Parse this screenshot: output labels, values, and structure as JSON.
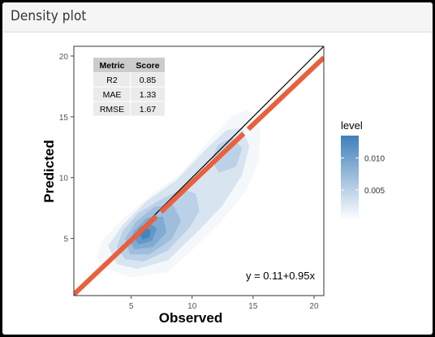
{
  "panel": {
    "title": "Density plot"
  },
  "metrics_table": {
    "headers": [
      "Metric",
      "Score"
    ],
    "rows": [
      [
        "R2",
        "0.85"
      ],
      [
        "MAE",
        "1.33"
      ],
      [
        "RMSE",
        "1.67"
      ]
    ]
  },
  "colors": {
    "background": "#ffffff",
    "identity_line": "#000000",
    "fit_line": "#e8613c",
    "density_low": "#ffffff",
    "density_high": "#3f7fbb",
    "table_header_bg": "#cccccc",
    "table_row_bg": "#ebebeb"
  },
  "chart_data": {
    "type": "density2d",
    "xlabel": "Observed",
    "ylabel": "Predicted",
    "xlim": [
      0.3,
      20.8
    ],
    "ylim": [
      0.3,
      20.8
    ],
    "x_ticks": [
      5,
      10,
      15,
      20
    ],
    "y_ticks": [
      5,
      10,
      15,
      20
    ],
    "grid": false,
    "identity_line": {
      "intercept": 0,
      "slope": 1
    },
    "fit_line": {
      "intercept": 0.11,
      "slope": 0.95,
      "style": "dashed"
    },
    "fit_equation": "y = 0.11+0.95x",
    "legend": {
      "title": "level",
      "position": "right",
      "ticks": [
        0.005,
        0.01
      ],
      "tick_labels": [
        "0.005",
        "0.010"
      ],
      "range": [
        0.0003,
        0.0135
      ]
    },
    "density_levels": [
      {
        "level": 0.001,
        "polygon": [
          [
            3,
            2.5
          ],
          [
            5,
            1.8
          ],
          [
            8,
            2.2
          ],
          [
            10.5,
            4.5
          ],
          [
            12.5,
            6.5
          ],
          [
            14.5,
            9
          ],
          [
            15.5,
            11.5
          ],
          [
            15.6,
            14
          ],
          [
            14.6,
            15.6
          ],
          [
            13.3,
            15.1
          ],
          [
            11.5,
            13.2
          ],
          [
            9,
            10.3
          ],
          [
            6.5,
            8.5
          ],
          [
            4.2,
            6.5
          ],
          [
            2.6,
            4.8
          ],
          [
            2.2,
            3.4
          ]
        ]
      },
      {
        "level": 0.003,
        "polygon": [
          [
            3.8,
            2.9
          ],
          [
            5.5,
            2.5
          ],
          [
            8,
            3.2
          ],
          [
            10.3,
            5.4
          ],
          [
            12.4,
            7.6
          ],
          [
            14.1,
            10.2
          ],
          [
            14.7,
            12.6
          ],
          [
            14.1,
            14.1
          ],
          [
            12.8,
            13.9
          ],
          [
            11,
            12.2
          ],
          [
            8.7,
            9.8
          ],
          [
            6.3,
            8.1
          ],
          [
            4.3,
            6.1
          ],
          [
            3.1,
            4.4
          ]
        ]
      },
      {
        "level": 0.005,
        "polygon": [
          [
            4.5,
            3.3
          ],
          [
            6,
            3.1
          ],
          [
            8,
            4
          ],
          [
            9.8,
            5.9
          ],
          [
            10.6,
            7.3
          ],
          [
            10.3,
            8.7
          ],
          [
            9.2,
            9.1
          ],
          [
            7.4,
            8.2
          ],
          [
            5.6,
            7.1
          ],
          [
            4.3,
            5.6
          ],
          [
            3.8,
            4.3
          ]
        ]
      },
      {
        "level": 0.005,
        "polygon": [
          [
            12.2,
            10.4
          ],
          [
            13.6,
            10.9
          ],
          [
            14.1,
            12.4
          ],
          [
            13.3,
            13.3
          ],
          [
            12.1,
            12.7
          ],
          [
            11.6,
            11.4
          ]
        ]
      },
      {
        "level": 0.007,
        "polygon": [
          [
            4.9,
            3.7
          ],
          [
            6.5,
            3.7
          ],
          [
            8.3,
            4.9
          ],
          [
            9.1,
            6.5
          ],
          [
            8.4,
            7.8
          ],
          [
            6.9,
            7.6
          ],
          [
            5.4,
            6.4
          ],
          [
            4.5,
            5
          ]
        ]
      },
      {
        "level": 0.009,
        "polygon": [
          [
            5.3,
            4.1
          ],
          [
            6.8,
            4.3
          ],
          [
            7.9,
            5.5
          ],
          [
            7.6,
            6.8
          ],
          [
            6.3,
            6.7
          ],
          [
            5.2,
            5.6
          ],
          [
            4.9,
            4.7
          ]
        ]
      },
      {
        "level": 0.011,
        "polygon": [
          [
            5.6,
            4.5
          ],
          [
            6.7,
            4.8
          ],
          [
            7.1,
            5.8
          ],
          [
            6.4,
            6.4
          ],
          [
            5.6,
            5.8
          ],
          [
            5.3,
            5
          ]
        ]
      },
      {
        "level": 0.013,
        "polygon": [
          [
            5.9,
            4.9
          ],
          [
            6.5,
            5.1
          ],
          [
            6.6,
            5.7
          ],
          [
            6.1,
            5.9
          ],
          [
            5.7,
            5.5
          ]
        ]
      }
    ]
  }
}
